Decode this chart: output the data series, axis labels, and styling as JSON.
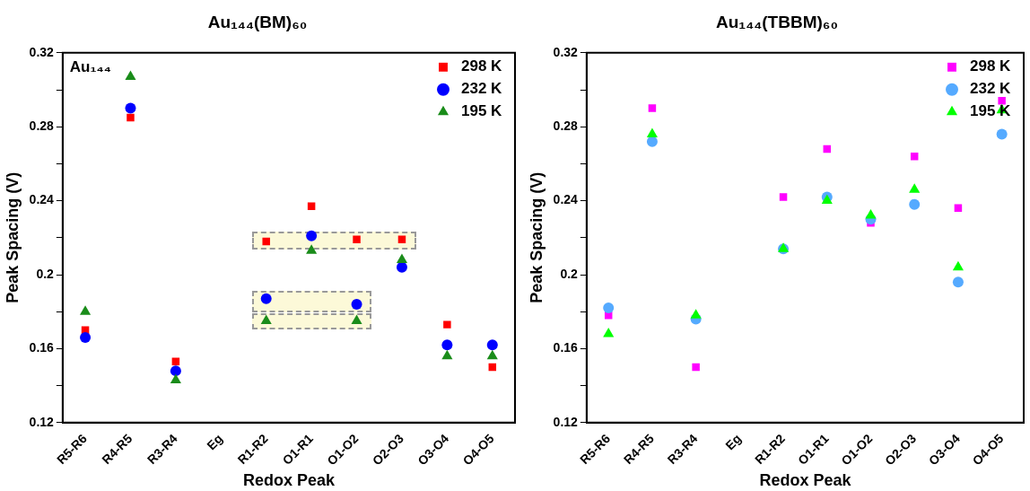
{
  "chart_data": [
    {
      "type": "scatter",
      "title": "Au₁₄₄(BM)₆₀",
      "xlabel": "Redox Peak",
      "ylabel": "Peak Spacing (V)",
      "annotations": [
        "Au₁₄₄"
      ],
      "categories": [
        "R5-R6",
        "R4-R5",
        "R3-R4",
        "Eg",
        "R1-R2",
        "O1-R1",
        "O1-O2",
        "O2-O3",
        "O3-O4",
        "O4-O5"
      ],
      "series": [
        {
          "name": "298 K",
          "color": "#ff0000",
          "marker": "square",
          "values": [
            0.17,
            0.285,
            0.153,
            null,
            0.218,
            0.237,
            0.219,
            0.219,
            0.173,
            0.15
          ]
        },
        {
          "name": "232 K",
          "color": "#0000ff",
          "marker": "circle",
          "values": [
            0.166,
            0.29,
            0.148,
            null,
            0.187,
            0.221,
            0.184,
            0.204,
            0.162,
            0.162
          ]
        },
        {
          "name": "195 K",
          "color": "#1a8c1a",
          "marker": "triangle",
          "values": [
            0.18,
            0.307,
            0.143,
            null,
            0.175,
            0.213,
            0.175,
            0.208,
            0.156,
            0.156
          ]
        }
      ],
      "ylim": [
        0.12,
        0.32
      ],
      "yticks": [
        0.12,
        {
          "value": 0.14,
          "label": null
        },
        0.16,
        {
          "value": 0.18,
          "label": null
        },
        0.2,
        {
          "value": 0.22,
          "label": null
        },
        0.24,
        {
          "value": 0.26,
          "label": null
        },
        0.28,
        {
          "value": 0.3,
          "label": null
        },
        0.32
      ],
      "grid": false,
      "legend": "top right"
    },
    {
      "type": "scatter",
      "title": "Au₁₄₄(TBBM)₆₀",
      "xlabel": "Redox Peak",
      "ylabel": "Peak Spacing (V)",
      "categories": [
        "R5-R6",
        "R4-R5",
        "R3-R4",
        "Eg",
        "R1-R2",
        "O1-R1",
        "O1-O2",
        "O2-O3",
        "O3-O4",
        "O4-O5"
      ],
      "series": [
        {
          "name": "298 K",
          "color": "#ff00ff",
          "marker": "square",
          "values": [
            0.178,
            0.29,
            0.15,
            null,
            0.242,
            0.268,
            0.228,
            0.264,
            0.236,
            0.294
          ]
        },
        {
          "name": "232 K",
          "color": "#55aaff",
          "marker": "circle",
          "values": [
            0.182,
            0.272,
            0.176,
            null,
            0.214,
            0.242,
            0.23,
            0.238,
            0.196,
            0.276
          ]
        },
        {
          "name": "195 K",
          "color": "#00ff00",
          "marker": "triangle",
          "values": [
            0.168,
            0.276,
            0.178,
            null,
            0.214,
            0.24,
            0.232,
            0.246,
            0.204,
            0.289
          ]
        }
      ],
      "ylim": [
        0.12,
        0.32
      ],
      "yticks": [
        0.12,
        {
          "value": 0.14,
          "label": null
        },
        0.16,
        {
          "value": 0.18,
          "label": null
        },
        0.2,
        {
          "value": 0.22,
          "label": null
        },
        0.24,
        {
          "value": 0.26,
          "label": null
        },
        0.28,
        {
          "value": 0.3,
          "label": null
        },
        0.32
      ],
      "grid": false,
      "legend": "top right"
    }
  ]
}
